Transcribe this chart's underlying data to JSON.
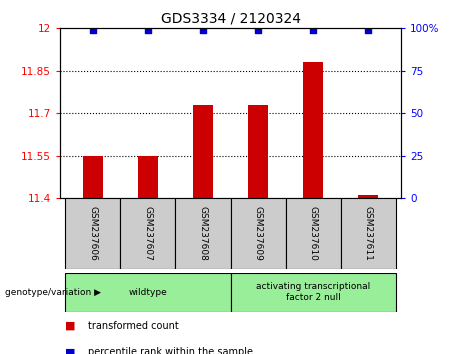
{
  "title": "GDS3334 / 2120324",
  "samples": [
    "GSM237606",
    "GSM237607",
    "GSM237608",
    "GSM237609",
    "GSM237610",
    "GSM237611"
  ],
  "transformed_counts": [
    11.55,
    11.55,
    11.73,
    11.73,
    11.88,
    11.41
  ],
  "percentile_ranks": [
    99,
    99,
    99,
    99,
    99,
    99
  ],
  "ylim_left": [
    11.4,
    12.0
  ],
  "yticks_left": [
    11.4,
    11.55,
    11.7,
    11.85,
    12.0
  ],
  "ytick_labels_left": [
    "11.4",
    "11.55",
    "11.7",
    "11.85",
    "12"
  ],
  "ylim_right": [
    0,
    100
  ],
  "yticks_right": [
    0,
    25,
    50,
    75,
    100
  ],
  "ytick_labels_right": [
    "0",
    "25",
    "50",
    "75",
    "100%"
  ],
  "bar_color": "#cc0000",
  "scatter_color": "#0000cc",
  "group_label": "genotype/variation",
  "group_spans": [
    {
      "start": 0,
      "end": 2,
      "label": "wildtype",
      "color": "#99ee99"
    },
    {
      "start": 3,
      "end": 5,
      "label": "activating transcriptional\nfactor 2 null",
      "color": "#99ee99"
    }
  ],
  "legend_items": [
    {
      "color": "#cc0000",
      "label": "transformed count"
    },
    {
      "color": "#0000cc",
      "label": "percentile rank within the sample"
    }
  ],
  "bar_width": 0.35,
  "dotted_line_color": "#000000",
  "background_plot": "#ffffff",
  "sample_box_color": "#cccccc",
  "grid_lines": [
    11.55,
    11.7,
    11.85
  ]
}
